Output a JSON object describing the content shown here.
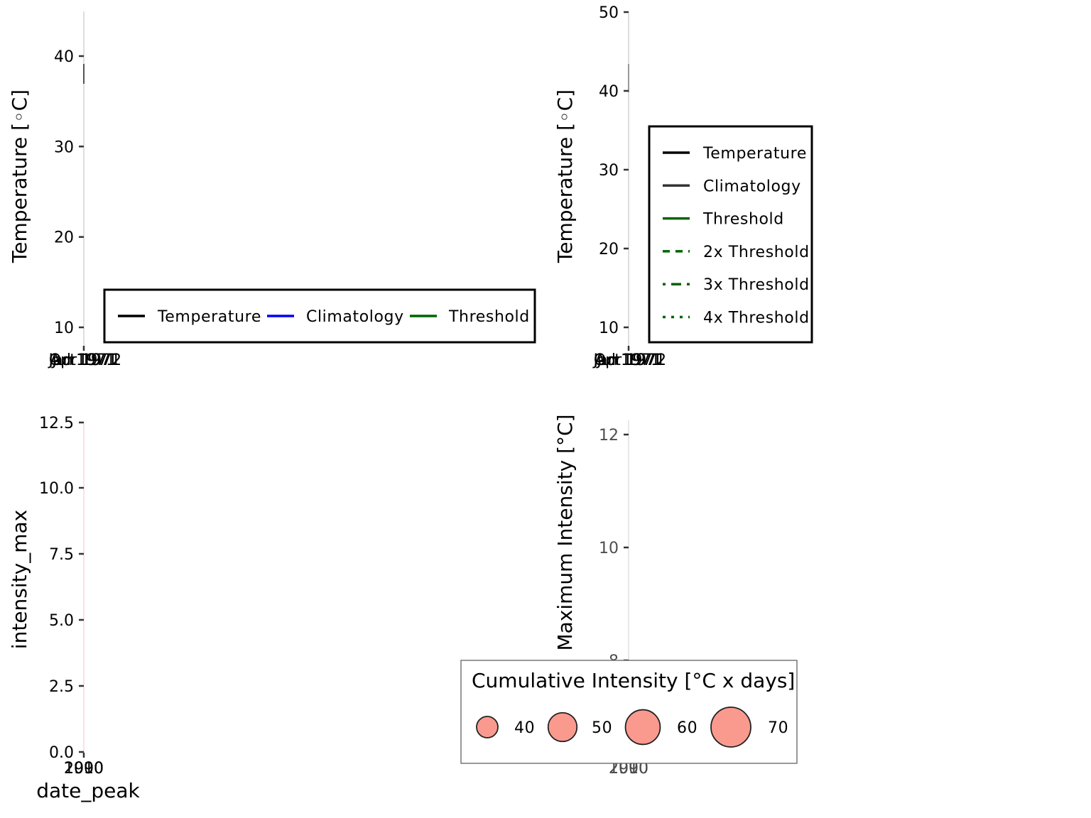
{
  "chart_data": [
    {
      "panel": "top-left",
      "type": "line",
      "ylabel": "Temperature [◦C]",
      "xlabel": "",
      "y_ticks": [
        "10",
        "20",
        "30",
        "40"
      ],
      "x_tick_labels": [
        "Jan 1971",
        "Jul 1971",
        "Oct 1971",
        "Apr 1972"
      ],
      "legend_position": "bottom-inside",
      "series": [
        {
          "name": "Temperature",
          "color": "#000000",
          "style": "solid"
        },
        {
          "name": "Climatology",
          "color": "#0000ff",
          "style": "solid"
        },
        {
          "name": "Threshold",
          "color": "#006400",
          "style": "solid"
        }
      ]
    },
    {
      "panel": "top-right",
      "type": "line",
      "ylabel": "Temperature [◦C]",
      "xlabel": "",
      "y_ticks": [
        "10",
        "20",
        "30",
        "40",
        "50"
      ],
      "x_tick_labels": [
        "Jan 1971",
        "Jul 1971",
        "Oct 1971",
        "Apr 1972"
      ],
      "legend_position": "left-inside",
      "series": [
        {
          "name": "Temperature",
          "color": "#000000",
          "style": "solid"
        },
        {
          "name": "Climatology",
          "color": "#333333",
          "style": "solid"
        },
        {
          "name": "Threshold",
          "color": "#006400",
          "style": "solid"
        },
        {
          "name": "2x Threshold",
          "color": "#006400",
          "style": "dashed"
        },
        {
          "name": "3x Threshold",
          "color": "#006400",
          "style": "dotdash"
        },
        {
          "name": "4x Threshold",
          "color": "#006400",
          "style": "dotted"
        }
      ]
    },
    {
      "panel": "bottom-left",
      "type": "bar",
      "ylabel": "intensity_max",
      "xlabel": "date_peak",
      "y_ticks": [
        "0.0",
        "2.5",
        "5.0",
        "7.5",
        "10.0",
        "12.5"
      ],
      "x_tick_labels": [
        "1990",
        "2000",
        "2010"
      ]
    },
    {
      "panel": "bottom-right",
      "type": "scatter",
      "ylabel": "Maximum Intensity [°C]",
      "xlabel": "",
      "y_ticks": [
        "8",
        "10",
        "12"
      ],
      "x_tick_labels": [
        "1990",
        "2000",
        "2010"
      ],
      "legend_position": "bottom",
      "size_legend": {
        "title": "Cumulative Intensity [°C x days]",
        "values": [
          "40",
          "50",
          "60",
          "70"
        ],
        "fill": "#fa9a8f"
      }
    }
  ]
}
